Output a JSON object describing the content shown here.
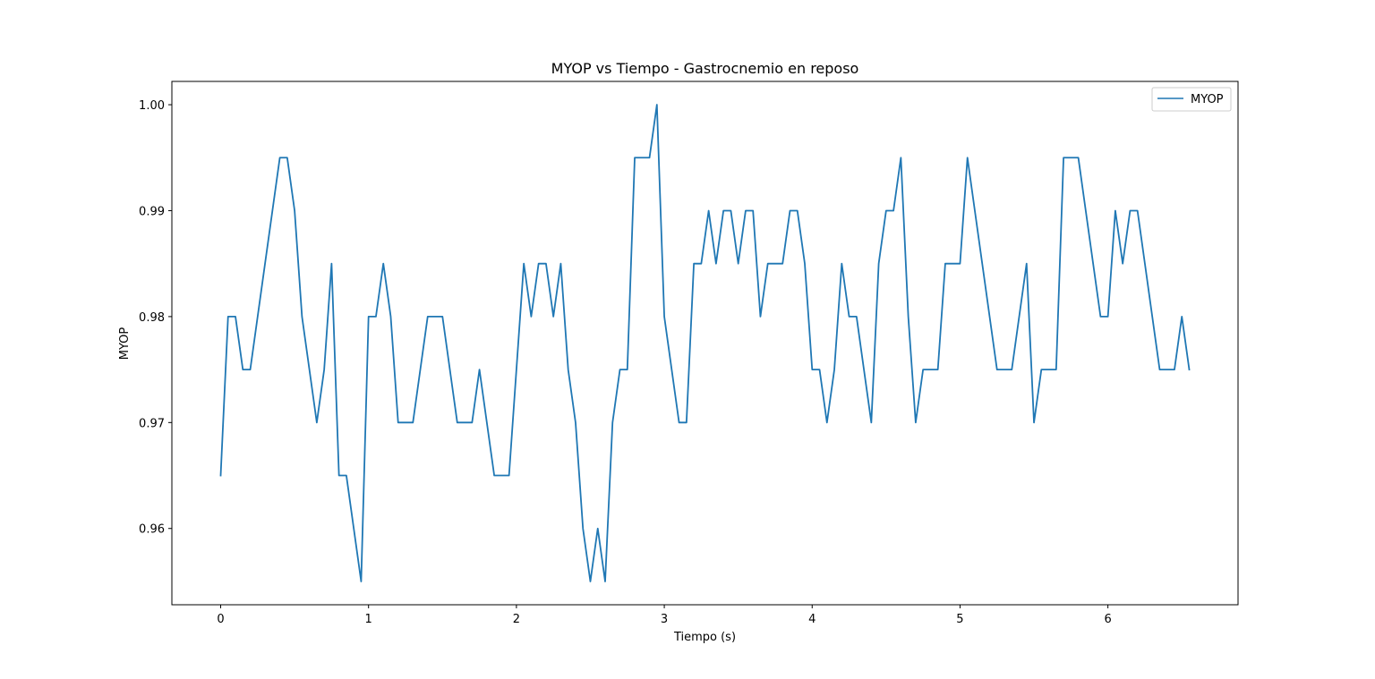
{
  "chart_data": {
    "type": "line",
    "title": "MYOP vs Tiempo - Gastrocnemio en reposo",
    "xlabel": "Tiempo (s)",
    "ylabel": "MYOP",
    "xlim": [
      -0.33,
      6.88
    ],
    "ylim": [
      0.9528,
      1.0022
    ],
    "xticks": [
      0,
      1,
      2,
      3,
      4,
      5,
      6
    ],
    "xtick_labels": [
      "0",
      "1",
      "2",
      "3",
      "4",
      "5",
      "6"
    ],
    "yticks": [
      0.96,
      0.97,
      0.98,
      0.99,
      1.0
    ],
    "ytick_labels": [
      "0.96",
      "0.97",
      "0.98",
      "0.99",
      "1.00"
    ],
    "grid": false,
    "legend_position": "top-right",
    "series": [
      {
        "name": "MYOP",
        "color": "#1f77b4",
        "x": [
          0,
          0.05,
          0.1,
          0.15,
          0.2,
          0.25,
          0.3,
          0.35,
          0.4,
          0.45,
          0.5,
          0.55,
          0.6,
          0.65,
          0.7,
          0.75,
          0.8,
          0.85,
          0.9,
          0.95,
          1.0,
          1.05,
          1.1,
          1.15,
          1.2,
          1.25,
          1.3,
          1.35,
          1.4,
          1.45,
          1.5,
          1.55,
          1.6,
          1.65,
          1.7,
          1.75,
          1.8,
          1.85,
          1.9,
          1.95,
          2.0,
          2.05,
          2.1,
          2.15,
          2.2,
          2.25,
          2.3,
          2.35,
          2.4,
          2.45,
          2.5,
          2.55,
          2.6,
          2.65,
          2.7,
          2.75,
          2.8,
          2.85,
          2.9,
          2.95,
          3.0,
          3.05,
          3.1,
          3.15,
          3.2,
          3.25,
          3.3,
          3.35,
          3.4,
          3.45,
          3.5,
          3.55,
          3.6,
          3.65,
          3.7,
          3.75,
          3.8,
          3.85,
          3.9,
          3.95,
          4.0,
          4.05,
          4.1,
          4.15,
          4.2,
          4.25,
          4.3,
          4.35,
          4.4,
          4.45,
          4.5,
          4.55,
          4.6,
          4.65,
          4.7,
          4.75,
          4.8,
          4.85,
          4.9,
          4.95,
          5.0,
          5.05,
          5.1,
          5.15,
          5.2,
          5.25,
          5.3,
          5.35,
          5.4,
          5.45,
          5.5,
          5.55,
          5.6,
          5.65,
          5.7,
          5.75,
          5.8,
          5.85,
          5.9,
          5.95,
          6.0,
          6.05,
          6.1,
          6.15,
          6.2,
          6.25,
          6.3,
          6.35,
          6.4,
          6.45,
          6.5,
          6.55
        ],
        "y": [
          0.965,
          0.98,
          0.98,
          0.975,
          0.975,
          0.98,
          0.985,
          0.99,
          0.995,
          0.995,
          0.99,
          0.98,
          0.975,
          0.97,
          0.975,
          0.985,
          0.965,
          0.965,
          0.96,
          0.955,
          0.98,
          0.98,
          0.985,
          0.98,
          0.97,
          0.97,
          0.97,
          0.975,
          0.98,
          0.98,
          0.98,
          0.975,
          0.97,
          0.97,
          0.97,
          0.975,
          0.97,
          0.965,
          0.965,
          0.965,
          0.975,
          0.985,
          0.98,
          0.985,
          0.985,
          0.98,
          0.985,
          0.975,
          0.97,
          0.96,
          0.955,
          0.96,
          0.955,
          0.97,
          0.975,
          0.975,
          0.995,
          0.995,
          0.995,
          1.0,
          0.98,
          0.975,
          0.97,
          0.97,
          0.985,
          0.985,
          0.99,
          0.985,
          0.99,
          0.99,
          0.985,
          0.99,
          0.99,
          0.98,
          0.985,
          0.985,
          0.985,
          0.99,
          0.99,
          0.985,
          0.975,
          0.975,
          0.97,
          0.975,
          0.985,
          0.98,
          0.98,
          0.975,
          0.97,
          0.985,
          0.99,
          0.99,
          0.995,
          0.98,
          0.97,
          0.975,
          0.975,
          0.975,
          0.985,
          0.985,
          0.985,
          0.995,
          0.99,
          0.985,
          0.98,
          0.975,
          0.975,
          0.975,
          0.98,
          0.985,
          0.97,
          0.975,
          0.975,
          0.975,
          0.995,
          0.995,
          0.995,
          0.99,
          0.985,
          0.98,
          0.98,
          0.99,
          0.985,
          0.99,
          0.99,
          0.985,
          0.98,
          0.975,
          0.975,
          0.975,
          0.98,
          0.975
        ]
      }
    ]
  }
}
